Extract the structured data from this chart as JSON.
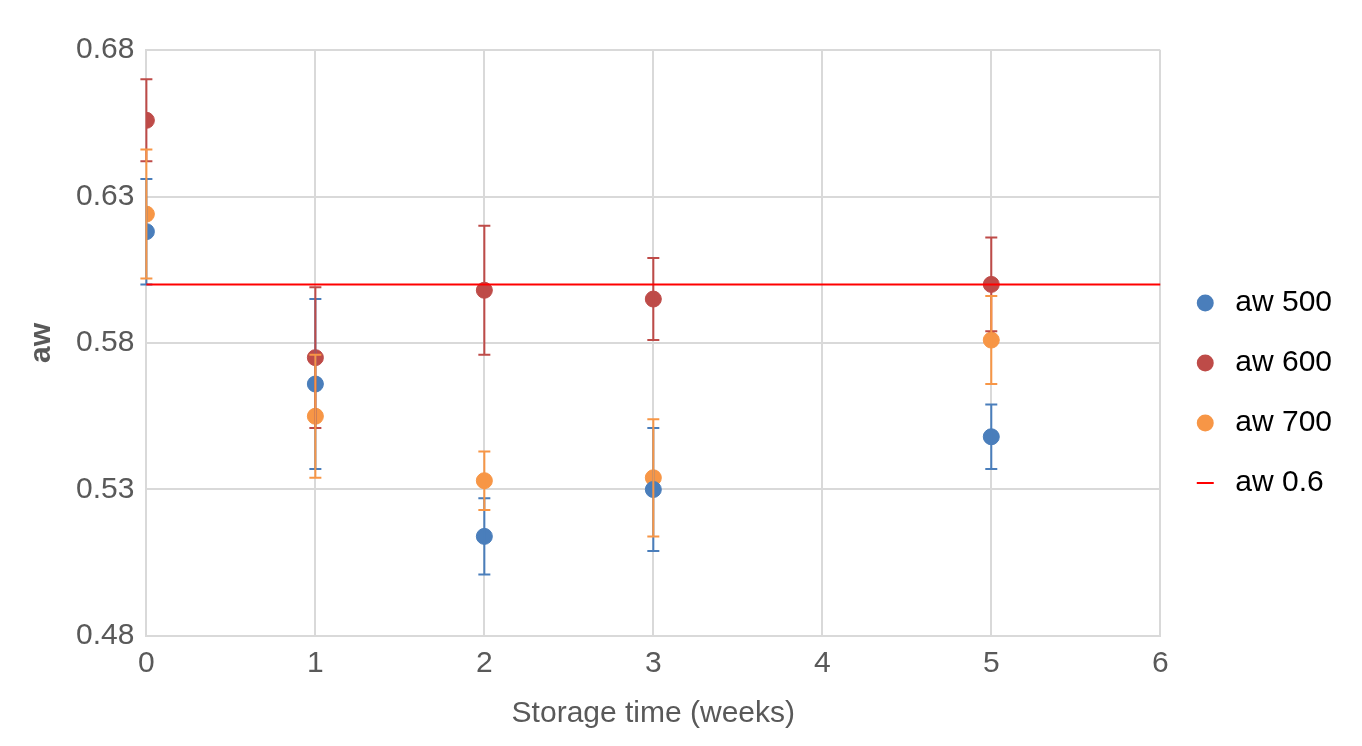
{
  "chart_data": {
    "type": "scatter",
    "xlabel": "Storage time (weeks)",
    "ylabel": "aw",
    "x": [
      0,
      1,
      2,
      3,
      5
    ],
    "series": [
      {
        "name": "aw 500",
        "color": "#4a7ebb",
        "values": [
          0.618,
          0.566,
          0.514,
          0.53,
          0.548
        ],
        "errors": [
          0.018,
          0.029,
          0.013,
          0.021,
          0.011
        ]
      },
      {
        "name": "aw 600",
        "color": "#be4b48",
        "values": [
          0.656,
          0.575,
          0.598,
          0.595,
          0.6
        ],
        "errors": [
          0.014,
          0.024,
          0.022,
          0.014,
          0.016
        ]
      },
      {
        "name": "aw 700",
        "color": "#f79646",
        "values": [
          0.624,
          0.555,
          0.533,
          0.534,
          0.581
        ],
        "errors": [
          0.022,
          0.021,
          0.01,
          0.02,
          0.015
        ]
      }
    ],
    "ref_lines": [
      {
        "axis": "y",
        "value": 0.6,
        "label": "aw 0.6",
        "color": "#ff0000"
      }
    ],
    "xlim": [
      0,
      6
    ],
    "xticks": [
      0,
      1,
      2,
      3,
      4,
      5,
      6
    ],
    "ylim": [
      0.48,
      0.68
    ],
    "yticks": [
      0.48,
      0.53,
      0.58,
      0.63,
      0.68
    ],
    "grid": true,
    "legend": "right",
    "marker": "circle"
  }
}
